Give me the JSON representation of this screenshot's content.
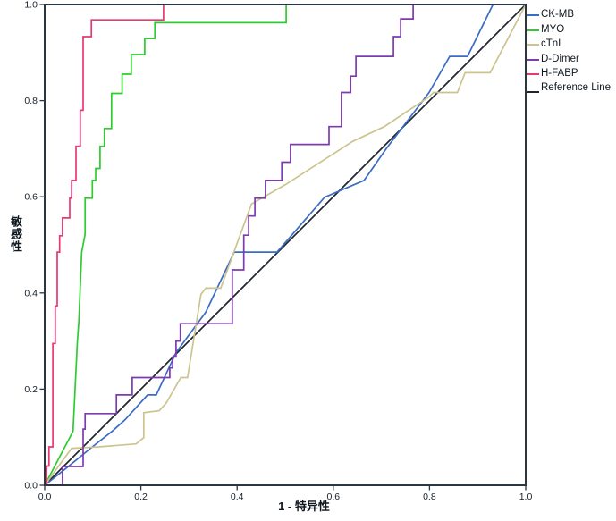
{
  "chart_data": {
    "type": "line",
    "title": "",
    "xlabel": "1 - 特异性",
    "ylabel": "敏感性",
    "xlim": [
      0,
      1
    ],
    "ylim": [
      0,
      1
    ],
    "x_ticks": [
      "0.0",
      "0.2",
      "0.4",
      "0.6",
      "0.8",
      "1.0"
    ],
    "y_ticks": [
      "0.0",
      "0.2",
      "0.4",
      "0.6",
      "0.8",
      "1.0"
    ],
    "grid": false,
    "legend_position": "right",
    "frame_color": "#2a3642",
    "tick_label_color": "#15202b",
    "series": [
      {
        "name": "CK-MB",
        "color": "#3b6cc4",
        "points": [
          [
            0,
            0
          ],
          [
            0.043,
            0.034
          ],
          [
            0.099,
            0.08
          ],
          [
            0.14,
            0.112
          ],
          [
            0.167,
            0.136
          ],
          [
            0.214,
            0.188
          ],
          [
            0.232,
            0.188
          ],
          [
            0.273,
            0.276
          ],
          [
            0.335,
            0.36
          ],
          [
            0.394,
            0.485
          ],
          [
            0.483,
            0.485
          ],
          [
            0.582,
            0.599
          ],
          [
            0.664,
            0.634
          ],
          [
            0.71,
            0.7
          ],
          [
            0.799,
            0.817
          ],
          [
            0.842,
            0.892
          ],
          [
            0.879,
            0.892
          ],
          [
            0.932,
            1.0
          ],
          [
            1,
            1
          ]
        ]
      },
      {
        "name": "MYO",
        "color": "#2ecc2e",
        "points": [
          [
            0,
            0
          ],
          [
            0.059,
            0.112
          ],
          [
            0.068,
            0.3
          ],
          [
            0.071,
            0.341
          ],
          [
            0.077,
            0.485
          ],
          [
            0.084,
            0.522
          ],
          [
            0.084,
            0.597
          ],
          [
            0.099,
            0.597
          ],
          [
            0.099,
            0.634
          ],
          [
            0.106,
            0.634
          ],
          [
            0.106,
            0.659
          ],
          [
            0.115,
            0.659
          ],
          [
            0.115,
            0.705
          ],
          [
            0.124,
            0.705
          ],
          [
            0.124,
            0.742
          ],
          [
            0.139,
            0.742
          ],
          [
            0.139,
            0.815
          ],
          [
            0.161,
            0.815
          ],
          [
            0.161,
            0.855
          ],
          [
            0.18,
            0.855
          ],
          [
            0.18,
            0.896
          ],
          [
            0.208,
            0.896
          ],
          [
            0.208,
            0.929
          ],
          [
            0.229,
            0.929
          ],
          [
            0.229,
            0.962
          ],
          [
            0.502,
            0.962
          ],
          [
            0.502,
            1.0
          ],
          [
            1,
            1
          ]
        ]
      },
      {
        "name": "cTnI",
        "color": "#ccc48e",
        "points": [
          [
            0,
            0
          ],
          [
            0.056,
            0.077
          ],
          [
            0.112,
            0.08
          ],
          [
            0.19,
            0.086
          ],
          [
            0.206,
            0.099
          ],
          [
            0.206,
            0.151
          ],
          [
            0.238,
            0.155
          ],
          [
            0.252,
            0.17
          ],
          [
            0.283,
            0.224
          ],
          [
            0.297,
            0.224
          ],
          [
            0.325,
            0.397
          ],
          [
            0.335,
            0.41
          ],
          [
            0.366,
            0.41
          ],
          [
            0.43,
            0.585
          ],
          [
            0.5,
            0.625
          ],
          [
            0.64,
            0.715
          ],
          [
            0.706,
            0.746
          ],
          [
            0.799,
            0.808
          ],
          [
            0.808,
            0.817
          ],
          [
            0.858,
            0.817
          ],
          [
            0.874,
            0.858
          ],
          [
            0.926,
            0.858
          ],
          [
            1,
            1
          ]
        ]
      },
      {
        "name": "D-Dimer",
        "color": "#7d3bb0",
        "points": [
          [
            0,
            0
          ],
          [
            0.037,
            0
          ],
          [
            0.037,
            0.039
          ],
          [
            0.08,
            0.039
          ],
          [
            0.08,
            0.117
          ],
          [
            0.084,
            0.117
          ],
          [
            0.084,
            0.149
          ],
          [
            0.149,
            0.149
          ],
          [
            0.149,
            0.188
          ],
          [
            0.182,
            0.188
          ],
          [
            0.182,
            0.224
          ],
          [
            0.26,
            0.224
          ],
          [
            0.26,
            0.244
          ],
          [
            0.266,
            0.244
          ],
          [
            0.266,
            0.267
          ],
          [
            0.273,
            0.267
          ],
          [
            0.273,
            0.3
          ],
          [
            0.282,
            0.3
          ],
          [
            0.282,
            0.336
          ],
          [
            0.39,
            0.336
          ],
          [
            0.39,
            0.448
          ],
          [
            0.414,
            0.448
          ],
          [
            0.414,
            0.52
          ],
          [
            0.424,
            0.52
          ],
          [
            0.424,
            0.56
          ],
          [
            0.437,
            0.56
          ],
          [
            0.437,
            0.597
          ],
          [
            0.459,
            0.597
          ],
          [
            0.459,
            0.634
          ],
          [
            0.493,
            0.634
          ],
          [
            0.493,
            0.672
          ],
          [
            0.511,
            0.672
          ],
          [
            0.511,
            0.709
          ],
          [
            0.591,
            0.709
          ],
          [
            0.591,
            0.746
          ],
          [
            0.617,
            0.746
          ],
          [
            0.617,
            0.817
          ],
          [
            0.636,
            0.817
          ],
          [
            0.636,
            0.851
          ],
          [
            0.647,
            0.851
          ],
          [
            0.647,
            0.892
          ],
          [
            0.725,
            0.892
          ],
          [
            0.725,
            0.933
          ],
          [
            0.74,
            0.933
          ],
          [
            0.74,
            0.97
          ],
          [
            0.766,
            0.97
          ],
          [
            0.766,
            1.0
          ],
          [
            1,
            1
          ]
        ]
      },
      {
        "name": "H-FABP",
        "color": "#e8396f",
        "points": [
          [
            0,
            0
          ],
          [
            0.004,
            0
          ],
          [
            0.004,
            0.04
          ],
          [
            0.009,
            0.04
          ],
          [
            0.009,
            0.08
          ],
          [
            0.017,
            0.08
          ],
          [
            0.017,
            0.295
          ],
          [
            0.022,
            0.295
          ],
          [
            0.022,
            0.373
          ],
          [
            0.026,
            0.373
          ],
          [
            0.026,
            0.485
          ],
          [
            0.031,
            0.485
          ],
          [
            0.031,
            0.519
          ],
          [
            0.037,
            0.519
          ],
          [
            0.037,
            0.556
          ],
          [
            0.052,
            0.556
          ],
          [
            0.052,
            0.597
          ],
          [
            0.056,
            0.597
          ],
          [
            0.056,
            0.634
          ],
          [
            0.065,
            0.634
          ],
          [
            0.065,
            0.705
          ],
          [
            0.074,
            0.705
          ],
          [
            0.074,
            0.78
          ],
          [
            0.08,
            0.78
          ],
          [
            0.08,
            0.933
          ],
          [
            0.097,
            0.933
          ],
          [
            0.097,
            0.968
          ],
          [
            0.247,
            0.968
          ],
          [
            0.247,
            1.0
          ],
          [
            1,
            1
          ]
        ]
      }
    ],
    "reference_line": {
      "name": "Reference Line",
      "color": "#20262e",
      "points": [
        [
          0,
          0
        ],
        [
          1,
          1
        ]
      ]
    }
  }
}
